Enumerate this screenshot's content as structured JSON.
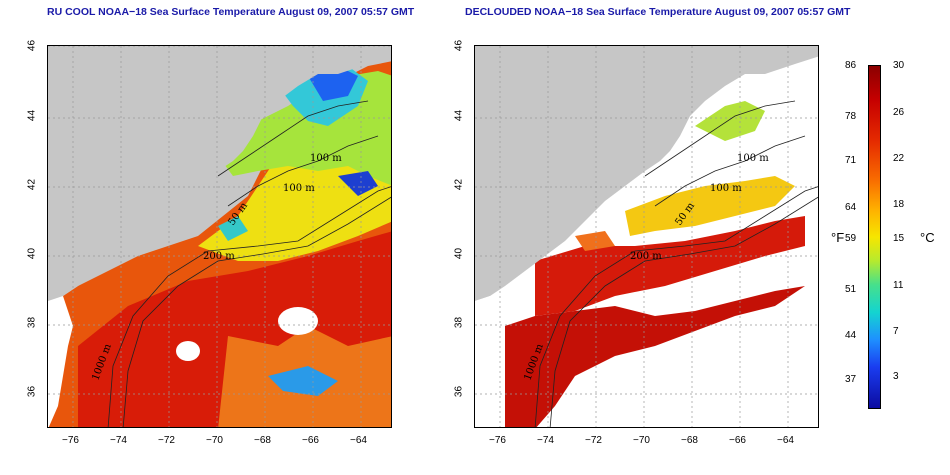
{
  "titles": {
    "left": "RU COOL NOAA−18 Sea Surface Temperature August 09, 2007 05:57 GMT",
    "right": "DECLOUDED NOAA−18 Sea Surface Temperature August 09, 2007 05:57 GMT"
  },
  "axes": {
    "x_ticks": [
      "−76",
      "−74",
      "−72",
      "−70",
      "−68",
      "−66",
      "−64"
    ],
    "y_ticks": [
      "46",
      "44",
      "42",
      "40",
      "38",
      "36"
    ]
  },
  "contours": {
    "left": [
      "100 m",
      "100 m",
      "50 m",
      "200 m",
      "1000 m"
    ],
    "right": [
      "100 m",
      "100 m",
      "50 m",
      "200 m",
      "1000 m"
    ]
  },
  "colorbar": {
    "fahrenheit_ticks": [
      "86",
      "78",
      "71",
      "64",
      "59",
      "51",
      "44",
      "37"
    ],
    "celsius_ticks": [
      "30",
      "26",
      "22",
      "18",
      "15",
      "11",
      "7",
      "3"
    ],
    "unit_f": "°F",
    "unit_c": "°C"
  },
  "colors": {
    "land": "#c6c6c6",
    "title": "#1a1aa8",
    "warm": "#c60000",
    "cool": "#1a3df0"
  }
}
